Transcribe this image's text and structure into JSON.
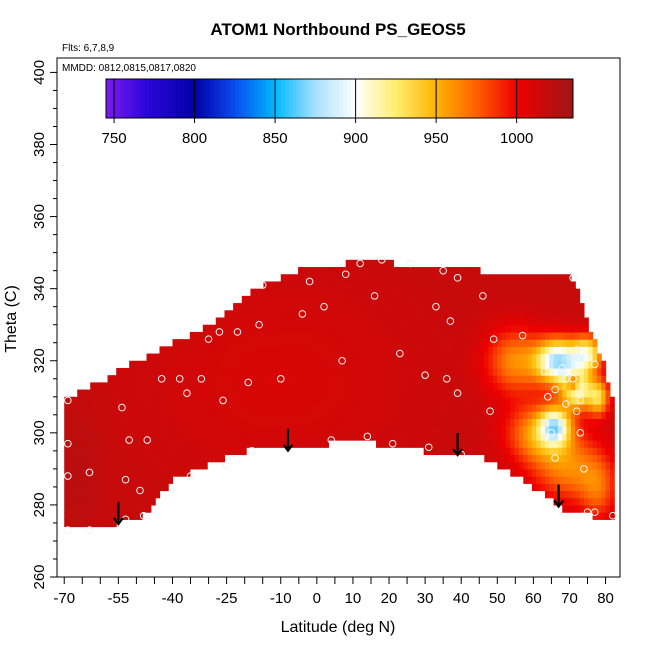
{
  "chart_data": {
    "type": "heatmap",
    "title": "ATOM1 Northbound PS_GEOS5",
    "subtitle_flights": "Flts: 6,7,8,9",
    "subtitle_dates": "MMDD: 0812,0815,0817,0820",
    "xlabel": "Latitude (deg N)",
    "ylabel": "Theta (C)",
    "xlim": [
      -72,
      84
    ],
    "ylim": [
      260,
      404
    ],
    "x_ticks": [
      -70,
      -55,
      -40,
      -25,
      -10,
      0,
      10,
      20,
      30,
      40,
      50,
      60,
      70,
      80
    ],
    "x_tick_labels": [
      "-70",
      "-55",
      "-40",
      "-25",
      "-10",
      "0",
      "10",
      "20",
      "30",
      "40",
      "50",
      "60",
      "70",
      "80"
    ],
    "x_minor_step": 5,
    "y_ticks": [
      260,
      280,
      300,
      320,
      340,
      360,
      380,
      400
    ],
    "y_tick_labels": [
      "260",
      "280",
      "300",
      "320",
      "340",
      "360",
      "380",
      "400"
    ],
    "colorbar": {
      "range": [
        745,
        1035
      ],
      "ticks": [
        750,
        800,
        850,
        900,
        950,
        1000
      ],
      "tick_labels": [
        "750",
        "800",
        "850",
        "900",
        "950",
        "1000"
      ],
      "stops": [
        {
          "v": 745,
          "c": "#7a1bf0"
        },
        {
          "v": 770,
          "c": "#2c06d9"
        },
        {
          "v": 800,
          "c": "#0000a8"
        },
        {
          "v": 825,
          "c": "#0a4cf0"
        },
        {
          "v": 850,
          "c": "#00b8ff"
        },
        {
          "v": 875,
          "c": "#a8e0ff"
        },
        {
          "v": 900,
          "c": "#ffffff"
        },
        {
          "v": 925,
          "c": "#ffee70"
        },
        {
          "v": 950,
          "c": "#ffb400"
        },
        {
          "v": 975,
          "c": "#ff6000"
        },
        {
          "v": 1000,
          "c": "#ee0000"
        },
        {
          "v": 1035,
          "c": "#a01515"
        }
      ]
    },
    "arrow_markers_lat": [
      -55,
      -8,
      39,
      67
    ],
    "obs_points": [
      {
        "lat": -69,
        "theta": 309
      },
      {
        "lat": -69,
        "theta": 297
      },
      {
        "lat": -69,
        "theta": 288
      },
      {
        "lat": -69,
        "theta": 273
      },
      {
        "lat": -63,
        "theta": 273
      },
      {
        "lat": -63,
        "theta": 289
      },
      {
        "lat": -54,
        "theta": 307
      },
      {
        "lat": -52,
        "theta": 298
      },
      {
        "lat": -53,
        "theta": 287
      },
      {
        "lat": -53,
        "theta": 276
      },
      {
        "lat": -49,
        "theta": 284
      },
      {
        "lat": -48,
        "theta": 277
      },
      {
        "lat": -47,
        "theta": 298
      },
      {
        "lat": -43,
        "theta": 315
      },
      {
        "lat": -38,
        "theta": 315
      },
      {
        "lat": -36,
        "theta": 311
      },
      {
        "lat": -35,
        "theta": 288
      },
      {
        "lat": -32,
        "theta": 315
      },
      {
        "lat": -30,
        "theta": 326
      },
      {
        "lat": -27,
        "theta": 328
      },
      {
        "lat": -26,
        "theta": 309
      },
      {
        "lat": -25,
        "theta": 291
      },
      {
        "lat": -22,
        "theta": 328
      },
      {
        "lat": -19,
        "theta": 314
      },
      {
        "lat": -18,
        "theta": 295
      },
      {
        "lat": -16,
        "theta": 330
      },
      {
        "lat": -15,
        "theta": 341
      },
      {
        "lat": -10,
        "theta": 315
      },
      {
        "lat": -4,
        "theta": 333
      },
      {
        "lat": -2,
        "theta": 342
      },
      {
        "lat": 2,
        "theta": 335
      },
      {
        "lat": 4,
        "theta": 298
      },
      {
        "lat": 7,
        "theta": 320
      },
      {
        "lat": 8,
        "theta": 344
      },
      {
        "lat": 12,
        "theta": 347
      },
      {
        "lat": 14,
        "theta": 299
      },
      {
        "lat": 16,
        "theta": 338
      },
      {
        "lat": 18,
        "theta": 348
      },
      {
        "lat": 21,
        "theta": 297
      },
      {
        "lat": 23,
        "theta": 322
      },
      {
        "lat": 26,
        "theta": 347
      },
      {
        "lat": 30,
        "theta": 316
      },
      {
        "lat": 31,
        "theta": 296
      },
      {
        "lat": 33,
        "theta": 335
      },
      {
        "lat": 35,
        "theta": 345
      },
      {
        "lat": 36,
        "theta": 315
      },
      {
        "lat": 37,
        "theta": 331
      },
      {
        "lat": 39,
        "theta": 343
      },
      {
        "lat": 39,
        "theta": 311
      },
      {
        "lat": 40,
        "theta": 294
      },
      {
        "lat": 46,
        "theta": 338
      },
      {
        "lat": 48,
        "theta": 306
      },
      {
        "lat": 49,
        "theta": 326
      },
      {
        "lat": 57,
        "theta": 327
      },
      {
        "lat": 63,
        "theta": 317
      },
      {
        "lat": 64,
        "theta": 310
      },
      {
        "lat": 65,
        "theta": 300
      },
      {
        "lat": 66,
        "theta": 293
      },
      {
        "lat": 66,
        "theta": 312
      },
      {
        "lat": 68,
        "theta": 318
      },
      {
        "lat": 69,
        "theta": 315
      },
      {
        "lat": 69,
        "theta": 308
      },
      {
        "lat": 71,
        "theta": 343
      },
      {
        "lat": 71,
        "theta": 315
      },
      {
        "lat": 72,
        "theta": 323
      },
      {
        "lat": 72,
        "theta": 306
      },
      {
        "lat": 73,
        "theta": 309
      },
      {
        "lat": 73,
        "theta": 300
      },
      {
        "lat": 74,
        "theta": 290
      },
      {
        "lat": 75,
        "theta": 278
      },
      {
        "lat": 77,
        "theta": 278
      },
      {
        "lat": 77,
        "theta": 319
      },
      {
        "lat": 82,
        "theta": 277
      }
    ],
    "grid": false,
    "legend_position": "top"
  }
}
